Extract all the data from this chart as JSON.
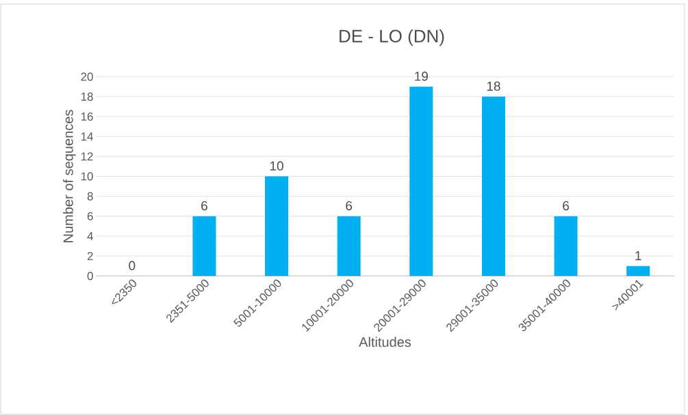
{
  "chart_data": {
    "type": "bar",
    "title": "DE - LO (DN)",
    "xlabel": "Altitudes",
    "ylabel": "Number of sequences",
    "categories": [
      "<2350",
      "2351-5000",
      "5001-10000",
      "10001-20000",
      "20001-29000",
      "29001-35000",
      "35001-40000",
      ">40001"
    ],
    "values": [
      0,
      6,
      10,
      6,
      19,
      18,
      6,
      1
    ],
    "color": "#00b0f0",
    "ylim": [
      0,
      20
    ],
    "yticks": [
      0,
      2,
      4,
      6,
      8,
      10,
      12,
      14,
      16,
      18,
      20
    ],
    "grid": "y",
    "data_labels": true
  }
}
